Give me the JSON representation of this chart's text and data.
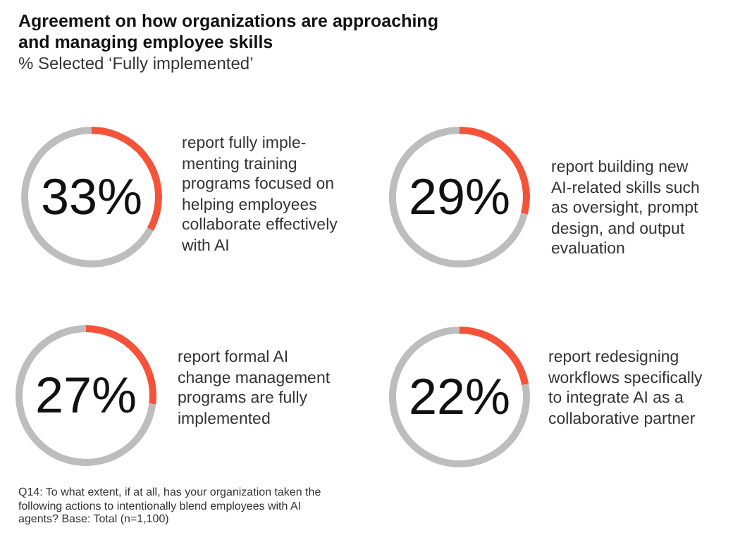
{
  "chart_data": [
    {
      "type": "donut",
      "title": "Agreement on how organizations are approaching\nand managing employee skills",
      "subtitle": "% Selected ‘Fully implemented’",
      "categories": [
        "report fully imple-\nmenting training\nprograms focused on\nhelping employees\ncollaborate effectively\nwith AI",
        null
      ],
      "values": [
        33,
        67
      ],
      "colors": [
        "#f4533a",
        "#bdbdbd"
      ],
      "value_labels": [
        "33%",
        null
      ]
    },
    {
      "type": "donut",
      "categories": [
        "report building new\nAI-related skills such\nas oversight, prompt\ndesign, and output\nevaluation",
        null
      ],
      "values": [
        29,
        71
      ],
      "colors": [
        "#f4533a",
        "#bdbdbd"
      ],
      "value_labels": [
        "29%",
        null
      ]
    },
    {
      "type": "donut",
      "categories": [
        "report formal AI\nchange management\nprograms are fully\nimplemented",
        null
      ],
      "values": [
        27,
        73
      ],
      "colors": [
        "#f4533a",
        "#bdbdbd"
      ],
      "value_labels": [
        "27%",
        null
      ],
      "annotations": [
        "Q14: To what extent, if at all, has your organization taken the\nfollowing actions to intentionally blend employees with AI\nagents? Base: Total (n=1,100)"
      ]
    },
    {
      "type": "donut",
      "categories": [
        "report redesigning\nworkflows specifically\nto integrate AI as a\ncollaborative partner",
        null
      ],
      "values": [
        22,
        78
      ],
      "colors": [
        "#f4533a",
        "#bdbdbd"
      ],
      "value_labels": [
        "22%",
        null
      ]
    }
  ]
}
